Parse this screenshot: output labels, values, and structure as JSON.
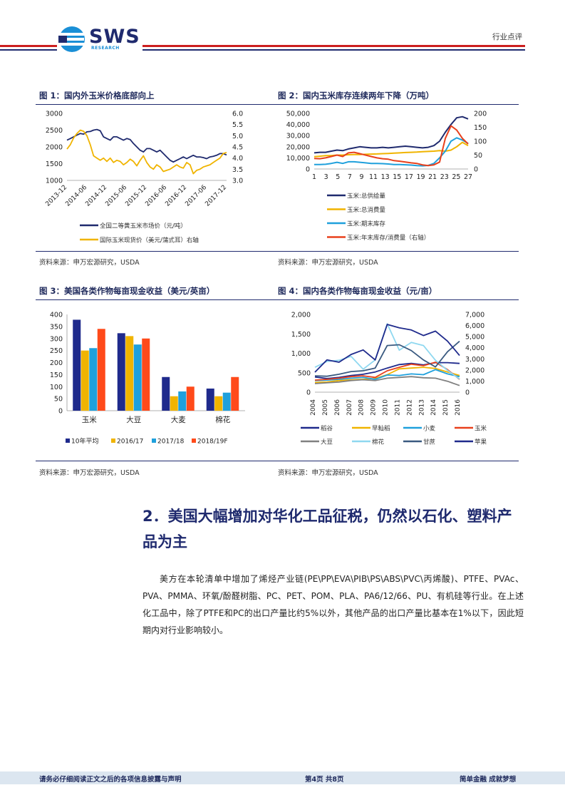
{
  "header": {
    "logo_text": "SWS",
    "logo_sub": "RESEARCH",
    "report_type": "行业点评",
    "colors": {
      "red": "#cc1f1f",
      "navy": "#1f2a6e",
      "logo_blue": "#1a8fd6"
    }
  },
  "figures": [
    {
      "title": "图 1：国内外玉米价格底部向上",
      "source": "资料来源：申万宏源研究，USDA",
      "legend": [
        "全国二等黄玉米市场价（元/吨）",
        "国际玉米现货价（美元/蒲式耳）右轴"
      ]
    },
    {
      "title": "图 2：国内玉米库存连续两年下降（万吨）",
      "source": "资料来源：申万宏源研究，USDA",
      "legend": [
        "玉米:总供给量",
        "玉米:总消费量",
        "玉米:期末库存",
        "玉米:年末库存/消费量（右轴）"
      ]
    },
    {
      "title": "图 3：美国各类作物每亩现金收益（美元/英亩）",
      "source": "资料来源：申万宏源研究，USDA",
      "legend": [
        "10年平均",
        "2016/17",
        "2017/18",
        "2018/19F"
      ]
    },
    {
      "title": "图 4：国内各类作物每亩现金收益（元/亩）",
      "source": "资料来源：申万宏源研究，USDA",
      "legend": [
        "稻谷",
        "早籼稻",
        "小麦",
        "玉米",
        "大豆",
        "棉花",
        "甘蔗",
        "苹果"
      ]
    }
  ],
  "chart_data": [
    {
      "type": "line",
      "x_tick_labels": [
        "2013-12",
        "2014-06",
        "2014-12",
        "2015-06",
        "2015-12",
        "2016-06",
        "2016-12",
        "2017-06",
        "2017-12"
      ],
      "left_axis": {
        "ylim": [
          1000,
          3000
        ],
        "ticks": [
          "3000",
          "2500",
          "2000",
          "1500",
          "1000"
        ]
      },
      "right_axis": {
        "ylim": [
          3.0,
          6.0
        ],
        "ticks": [
          "6.0",
          "5.5",
          "5.0",
          "4.5",
          "4.0",
          "3.5",
          "3.0"
        ]
      },
      "series": [
        {
          "name": "全国二等黄玉米市场价（元/吨）",
          "axis": "left",
          "color": "#1f2a6e",
          "values": [
            2200,
            2250,
            2300,
            2350,
            2400,
            2380,
            2450,
            2460,
            2500,
            2520,
            2480,
            2300,
            2250,
            2200,
            2300,
            2300,
            2250,
            2200,
            2250,
            2220,
            2100,
            2000,
            1900,
            1850,
            1950,
            1950,
            1900,
            1850,
            1900,
            1800,
            1700,
            1600,
            1550,
            1600,
            1650,
            1700,
            1650,
            1700,
            1750,
            1700,
            1700,
            1680,
            1650,
            1700,
            1720,
            1750,
            1800,
            1800,
            1760
          ]
        },
        {
          "name": "国际玉米现货价（美元/蒲式耳）右轴",
          "axis": "right",
          "color": "#f0b400",
          "values": [
            4.4,
            4.6,
            4.9,
            5.1,
            5.25,
            5.2,
            5.0,
            4.6,
            4.1,
            4.0,
            3.9,
            4.0,
            3.85,
            4.0,
            3.8,
            3.9,
            3.85,
            3.7,
            3.8,
            3.95,
            3.85,
            3.65,
            3.9,
            4.1,
            3.8,
            3.6,
            3.5,
            3.7,
            3.6,
            3.4,
            3.45,
            3.5,
            3.6,
            3.7,
            3.6,
            3.55,
            3.8,
            3.7,
            3.3,
            3.45,
            3.5,
            3.6,
            3.65,
            3.7,
            3.8,
            3.9,
            4.0,
            4.2,
            4.25
          ]
        }
      ]
    },
    {
      "type": "line",
      "x_tick_labels": [
        "1",
        "3",
        "5",
        "7",
        "9",
        "11",
        "13",
        "15",
        "17",
        "19",
        "21",
        "23",
        "25",
        "27"
      ],
      "left_axis": {
        "ylim": [
          0,
          50000
        ],
        "ticks": [
          "50,000",
          "40,000",
          "30,000",
          "20,000",
          "10,000",
          "0"
        ]
      },
      "right_axis": {
        "ylim": [
          0,
          200
        ],
        "ticks": [
          "200",
          "150",
          "100",
          "50",
          "0"
        ]
      },
      "series": [
        {
          "name": "玉米:总供给量",
          "axis": "left",
          "color": "#1f2a6e",
          "values": [
            14500,
            15000,
            15000,
            16000,
            17000,
            16500,
            18000,
            19000,
            20000,
            19500,
            19000,
            19000,
            19500,
            19000,
            19500,
            20000,
            20500,
            20000,
            19500,
            19000,
            19500,
            21000,
            25000,
            33000,
            40000,
            46000,
            47000,
            45000
          ]
        },
        {
          "name": "玉米:总消费量",
          "axis": "left",
          "color": "#f0b400",
          "values": [
            11000,
            11500,
            12000,
            12000,
            12500,
            12500,
            12800,
            13000,
            13000,
            13200,
            13400,
            13500,
            13800,
            14000,
            14200,
            14500,
            14800,
            15000,
            15200,
            15500,
            15800,
            16000,
            16500,
            16000,
            17000,
            20000,
            24000,
            21000
          ]
        },
        {
          "name": "玉米:期末库存",
          "axis": "left",
          "color": "#1fa0dc",
          "values": [
            4000,
            4000,
            4200,
            5000,
            6000,
            5000,
            6500,
            6500,
            6000,
            5500,
            5000,
            5000,
            4800,
            4500,
            4000,
            4000,
            3800,
            3500,
            3000,
            2800,
            3200,
            5000,
            10000,
            16000,
            25000,
            28000,
            26000,
            23000
          ]
        },
        {
          "name": "玉米:年末库存/消费量（右轴）",
          "axis": "right",
          "color": "#e8401c",
          "values": [
            38,
            37,
            40,
            45,
            50,
            45,
            58,
            60,
            55,
            50,
            45,
            40,
            37,
            35,
            30,
            28,
            25,
            22,
            20,
            15,
            12,
            15,
            25,
            110,
            155,
            140,
            110,
            90
          ]
        }
      ]
    },
    {
      "type": "bar",
      "categories": [
        "玉米",
        "大豆",
        "大麦",
        "棉花"
      ],
      "ylim": [
        0,
        400
      ],
      "y_tick_labels": [
        "400",
        "350",
        "300",
        "250",
        "200",
        "150",
        "100",
        "50",
        "0"
      ],
      "series": [
        {
          "name": "10年平均",
          "color": "#1f2a8c",
          "values": [
            378,
            322,
            140,
            92
          ]
        },
        {
          "name": "2016/17",
          "color": "#f0b400",
          "values": [
            250,
            310,
            60,
            60
          ]
        },
        {
          "name": "2017/18",
          "color": "#1fa0dc",
          "values": [
            260,
            275,
            80,
            75
          ]
        },
        {
          "name": "2018/19F",
          "color": "#ff4a1a",
          "values": [
            340,
            300,
            100,
            140
          ]
        }
      ]
    },
    {
      "type": "line",
      "x_tick_labels": [
        "2004",
        "2005",
        "2006",
        "2007",
        "2008",
        "2009",
        "2010",
        "2011",
        "2012",
        "2013",
        "2014",
        "2015",
        "2016"
      ],
      "left_axis": {
        "ylim": [
          0,
          2000
        ],
        "ticks": [
          "2,000",
          "1,500",
          "1,000",
          "500",
          "0"
        ]
      },
      "right_axis": {
        "ylim": [
          0,
          7000
        ],
        "ticks": [
          "7,000",
          "6,000",
          "5,000",
          "4,000",
          "3,000",
          "2,000",
          "1,000",
          "0"
        ]
      },
      "series": [
        {
          "name": "稻谷",
          "axis": "left",
          "color": "#1f2a8c",
          "values": [
            390,
            350,
            380,
            430,
            460,
            520,
            620,
            710,
            740,
            700,
            760,
            760,
            740
          ]
        },
        {
          "name": "早籼稻",
          "axis": "left",
          "color": "#f0b400",
          "values": [
            250,
            260,
            300,
            320,
            330,
            350,
            450,
            600,
            620,
            640,
            610,
            520,
            430
          ]
        },
        {
          "name": "小麦",
          "axis": "left",
          "color": "#1fa0dc",
          "values": [
            300,
            310,
            330,
            360,
            380,
            330,
            440,
            430,
            470,
            450,
            580,
            470,
            400
          ]
        },
        {
          "name": "玉米",
          "axis": "left",
          "color": "#e8401c",
          "values": [
            310,
            330,
            360,
            400,
            420,
            380,
            550,
            640,
            720,
            680,
            770,
            580,
            330
          ]
        },
        {
          "name": "大豆",
          "axis": "left",
          "color": "#808080",
          "values": [
            220,
            240,
            260,
            300,
            320,
            300,
            360,
            380,
            400,
            370,
            360,
            280,
            170
          ]
        },
        {
          "name": "棉花",
          "axis": "left",
          "color": "#8fd8f0",
          "values": [
            640,
            790,
            820,
            920,
            590,
            830,
            1760,
            1080,
            1280,
            1200,
            820,
            560,
            340
          ]
        },
        {
          "name": "甘蔗",
          "axis": "left",
          "color": "#3a5a80",
          "values": [
            420,
            410,
            460,
            530,
            550,
            620,
            1200,
            1220,
            1070,
            830,
            650,
            1040,
            1310
          ]
        },
        {
          "name": "苹果",
          "axis": "right",
          "color": "#1f2a8c",
          "values": [
            1800,
            2900,
            2700,
            3400,
            3800,
            2900,
            6100,
            5800,
            5600,
            5100,
            5500,
            4600,
            3300
          ]
        }
      ]
    }
  ],
  "section": {
    "heading": "2．美国大幅增加对华化工品征税，仍然以石化、塑料产品为主",
    "paragraph": "美方在本轮清单中增加了烯烃产业链(PE\\PP\\EVA\\PIB\\PS\\ABS\\PVC\\丙烯酸)、PTFE、PVAc、PVA、PMMA、环氧/酚醛树脂、PC、PET、POM、PLA、PA6/12/66、PU、有机硅等行业。在上述化工品中，除了PTFE和PC的出口产量比约5%以外，其他产品的出口产量比基本在1%以下，因此短期内对行业影响较小。"
  },
  "footer": {
    "disclaimer": "请务必仔细阅读正文之后的各项信息披露与声明",
    "page_info": "第4页  共8页",
    "slogan": "简单金融 成就梦想"
  }
}
